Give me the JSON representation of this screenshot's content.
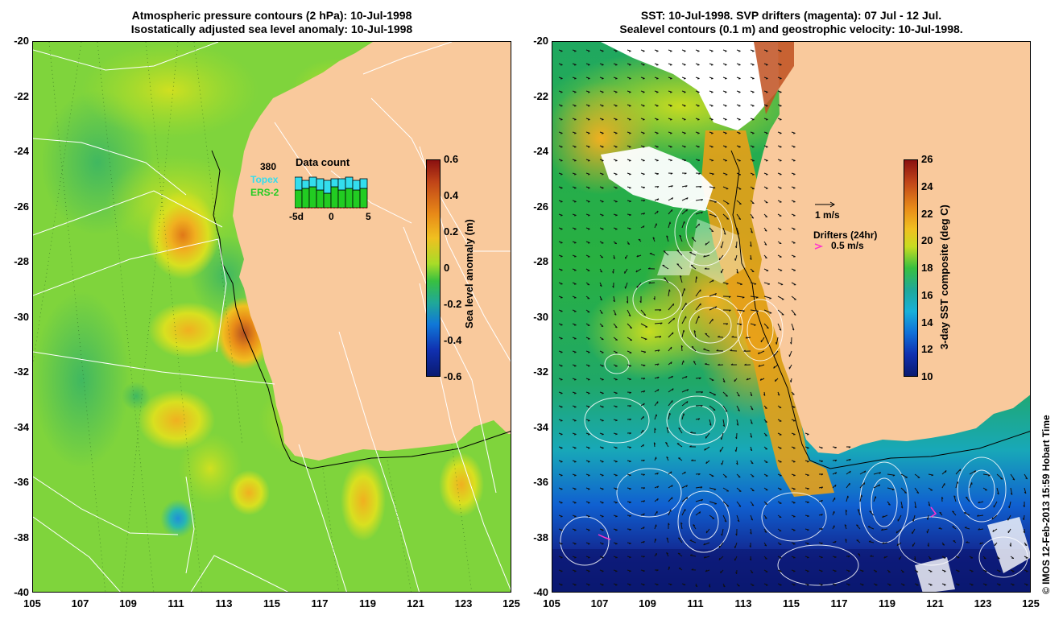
{
  "left_panel": {
    "title_line1": "Atmospheric pressure contours (2 hPa): 10-Jul-1998",
    "title_line2": "Isostatically adjusted sea level anomaly: 10-Jul-1998",
    "colorbar": {
      "label": "Sea level anomaly (m)",
      "ticks": [
        "0.6",
        "0.4",
        "0.2",
        "0",
        "-0.2",
        "-0.4",
        "-0.6"
      ],
      "range": [
        -0.6,
        0.6
      ]
    },
    "data_count": {
      "title": "Data count",
      "max_label": "380",
      "series": [
        {
          "name": "Topex",
          "color": "#33ddee"
        },
        {
          "name": "ERS-2",
          "color": "#22cc22"
        }
      ],
      "x_ticks": [
        "-5d",
        "0",
        "5"
      ]
    }
  },
  "right_panel": {
    "title_line1": "SST: 10-Jul-1998. SVP drifters (magenta): 07 Jul - 12 Jul.",
    "title_line2": "Sealevel contours (0.1 m) and geostrophic velocity: 10-Jul-1998.",
    "colorbar": {
      "label": "3-day SST composite (deg C)",
      "ticks": [
        "26",
        "24",
        "22",
        "20",
        "18",
        "16",
        "14",
        "12",
        "10"
      ],
      "range": [
        10,
        26
      ]
    },
    "vector_legend": "1 m/s",
    "drifter_legend_title": "Drifters (24hr)",
    "drifter_legend_scale": "0.5 m/s",
    "drifter_color": "#ff33cc"
  },
  "axes": {
    "x_ticks": [
      "105",
      "107",
      "109",
      "111",
      "113",
      "115",
      "117",
      "119",
      "121",
      "123",
      "125"
    ],
    "y_ticks": [
      "-20",
      "-22",
      "-24",
      "-26",
      "-28",
      "-30",
      "-32",
      "-34",
      "-36",
      "-38",
      "-40"
    ],
    "xlim": [
      105,
      125
    ],
    "ylim": [
      -40,
      -20
    ]
  },
  "colors": {
    "land": "#f9c99c",
    "ocean_base_left": "#7fd43c",
    "ocean_base_right": "#2aa05a"
  },
  "credit": "© IMOS 12-Feb-2013 15:59 Hobart Time"
}
